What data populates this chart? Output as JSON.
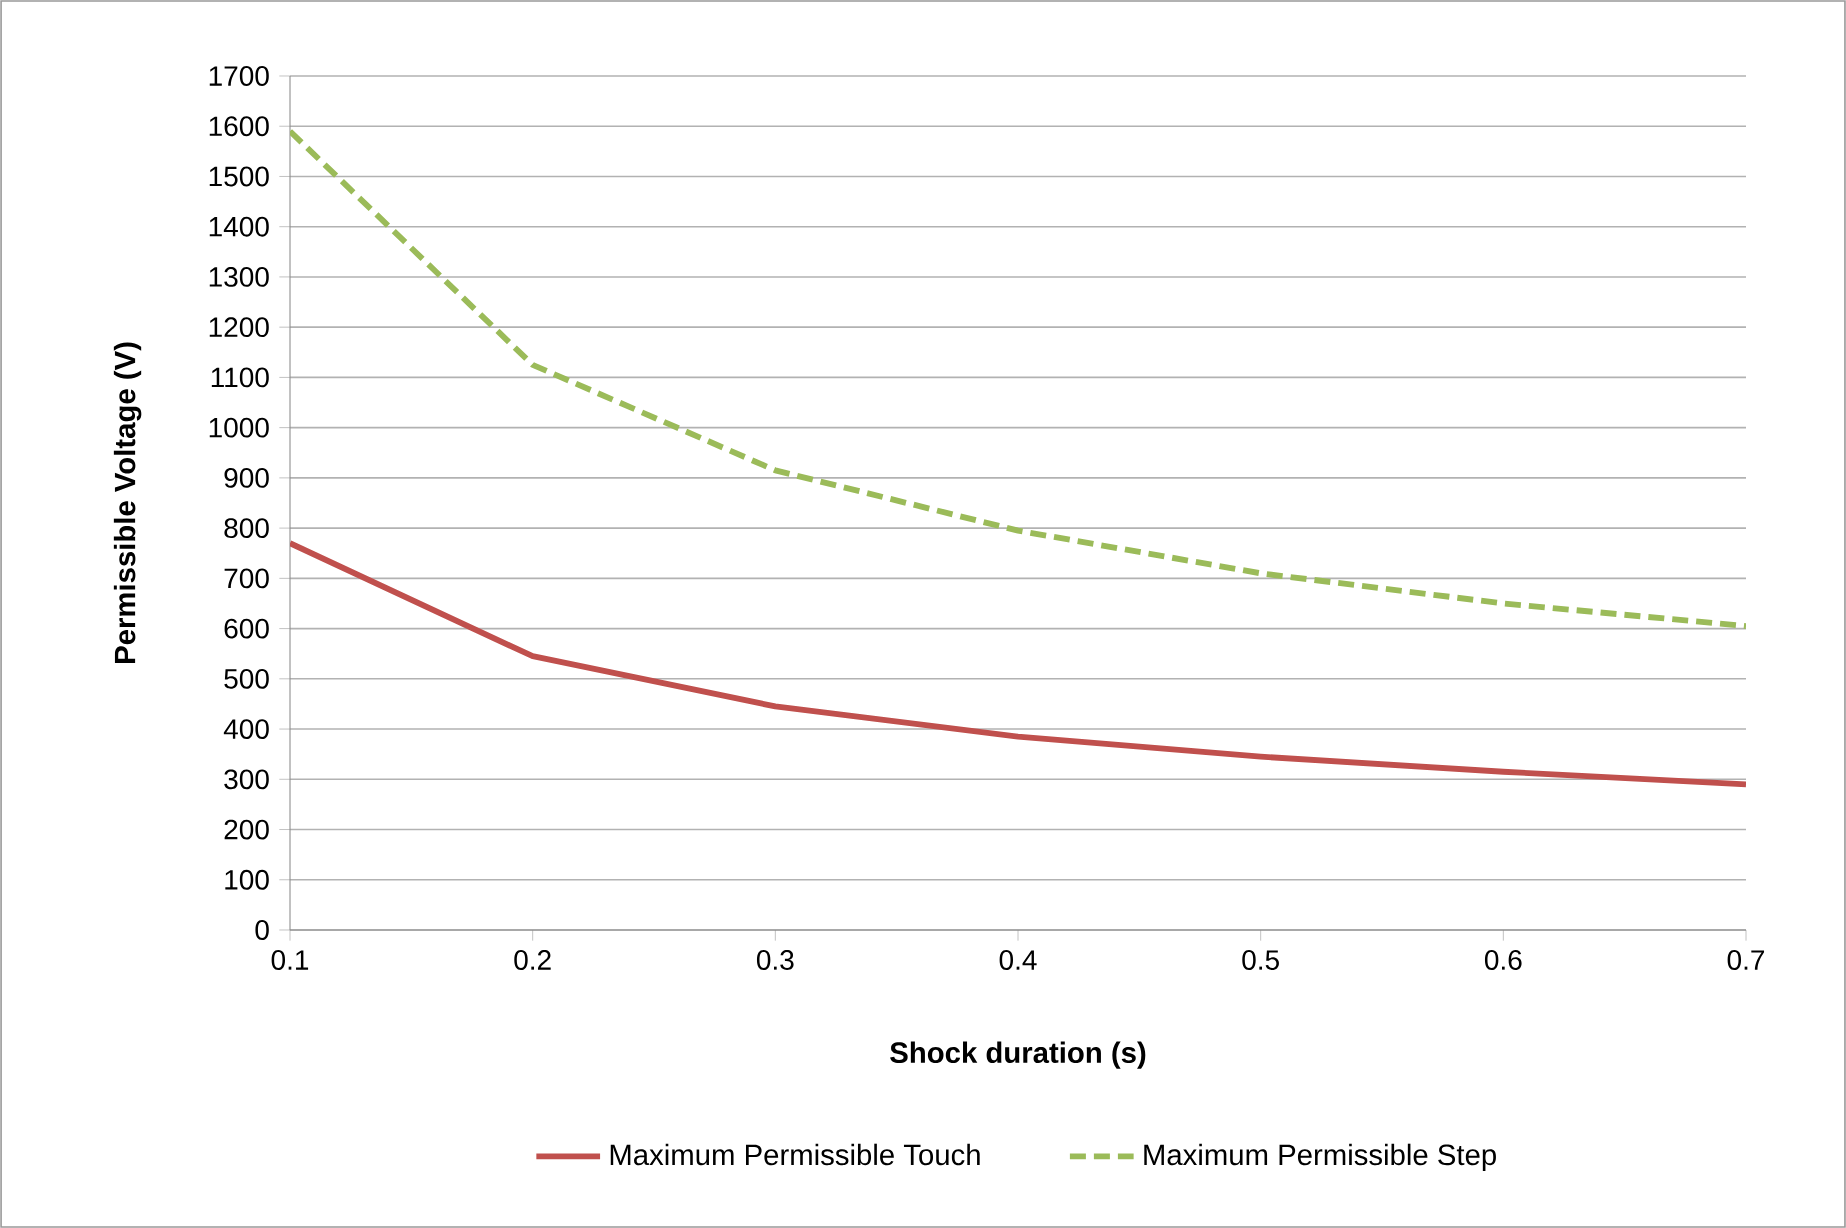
{
  "chart_data": {
    "type": "line",
    "xlabel": "Shock duration (s)",
    "ylabel": "Permissible Voltage (V)",
    "x": [
      0.1,
      0.2,
      0.3,
      0.4,
      0.5,
      0.6,
      0.7
    ],
    "series": [
      {
        "name": "Maximum Permissible Touch",
        "color": "#c0504d",
        "line_style": "solid",
        "values": [
          770,
          545,
          445,
          385,
          345,
          315,
          290
        ]
      },
      {
        "name": "Maximum Permissible Step",
        "color": "#9bbb59",
        "line_style": "dashed",
        "values": [
          1590,
          1125,
          915,
          795,
          710,
          650,
          605
        ]
      }
    ],
    "xlim": [
      0.1,
      0.7
    ],
    "xticks": [
      0.1,
      0.2,
      0.3,
      0.4,
      0.5,
      0.6,
      0.7
    ],
    "ylim": [
      0,
      1700
    ],
    "yticks": [
      0,
      100,
      200,
      300,
      400,
      500,
      600,
      700,
      800,
      900,
      1000,
      1100,
      1200,
      1300,
      1400,
      1500,
      1600,
      1700
    ],
    "grid": "y",
    "legend": "bottom",
    "marker": "none"
  }
}
